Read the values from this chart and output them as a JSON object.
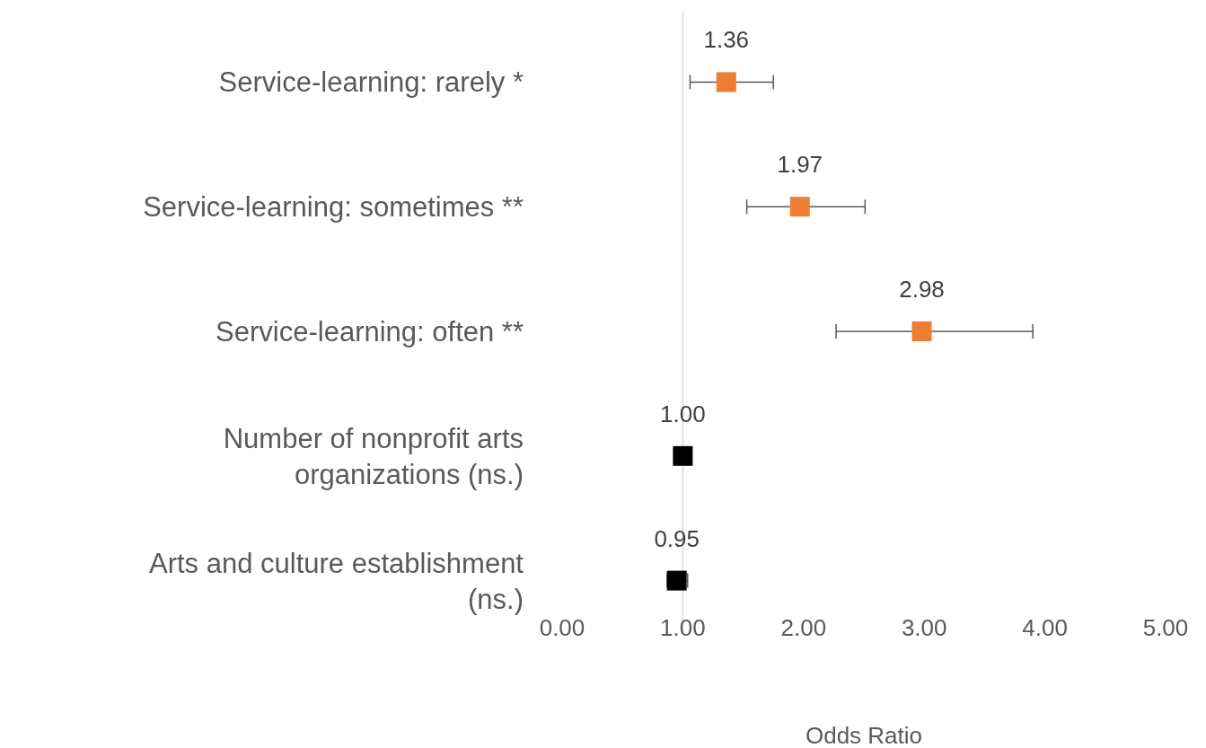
{
  "chart_data": {
    "type": "scatter",
    "orientation": "horizontal",
    "marker": "square",
    "categories": [
      "Service-learning: rarely *",
      "Service-learning: sometimes **",
      "Service-learning: often **",
      "Number of nonprofit arts organizations (ns.)",
      "Arts and culture establishment (ns.)"
    ],
    "values": [
      1.36,
      1.97,
      2.98,
      1.0,
      0.95
    ],
    "colors": [
      "#ed7d31",
      "#ed7d31",
      "#ed7d31",
      "#000000",
      "#000000"
    ],
    "errors": [
      [
        1.06,
        1.75
      ],
      [
        1.53,
        2.51
      ],
      [
        2.27,
        3.9
      ],
      null,
      [
        0.87,
        1.04
      ]
    ],
    "value_labels": [
      "1.36",
      "1.97",
      "2.98",
      "1.00",
      "0.95"
    ],
    "xlim": [
      0,
      5
    ],
    "xticks": [
      {
        "value": 0,
        "label": "0.00"
      },
      {
        "value": 1,
        "label": "1.00"
      },
      {
        "value": 2,
        "label": "2.00"
      },
      {
        "value": 3,
        "label": "3.00"
      },
      {
        "value": 4,
        "label": "4.00"
      },
      {
        "value": 5,
        "label": "5.00"
      }
    ],
    "xlabel": "Odds Ratio",
    "ref_lines": [
      {
        "axis": "x",
        "value": 1,
        "color": "#d9d9d9"
      }
    ],
    "grid": false
  }
}
